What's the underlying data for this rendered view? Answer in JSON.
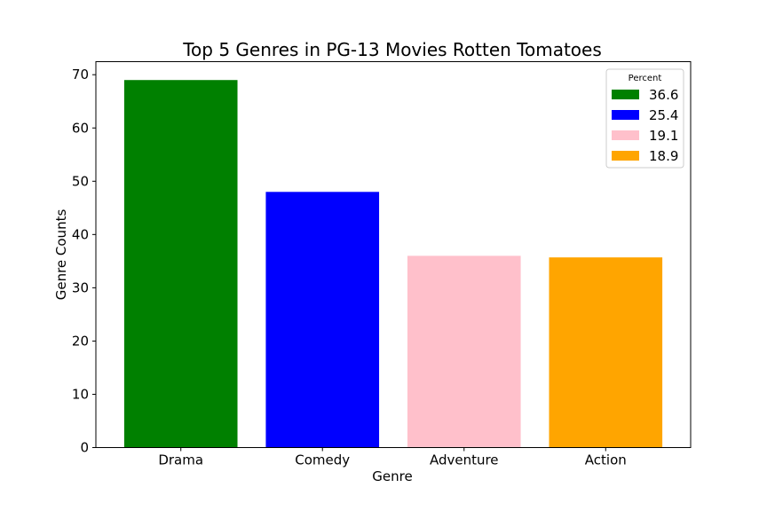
{
  "chart_data": {
    "type": "bar",
    "title": "Top 5 Genres in PG-13 Movies Rotten Tomatoes",
    "xlabel": "Genre",
    "ylabel": "Genre Counts",
    "categories": [
      "Drama",
      "Comedy",
      "Adventure",
      "Action"
    ],
    "values": [
      69,
      48,
      36,
      35.7
    ],
    "colors": [
      "#008000",
      "#0000ff",
      "#ffc0cb",
      "#ffa500"
    ],
    "ylim": [
      0,
      72.45
    ],
    "yticks": [
      0,
      10,
      20,
      30,
      40,
      50,
      60,
      70
    ],
    "grid": false,
    "legend": {
      "title": "Percent",
      "placement": "top-right",
      "entries": [
        "36.6",
        "25.4",
        "19.1",
        "18.9"
      ]
    }
  }
}
